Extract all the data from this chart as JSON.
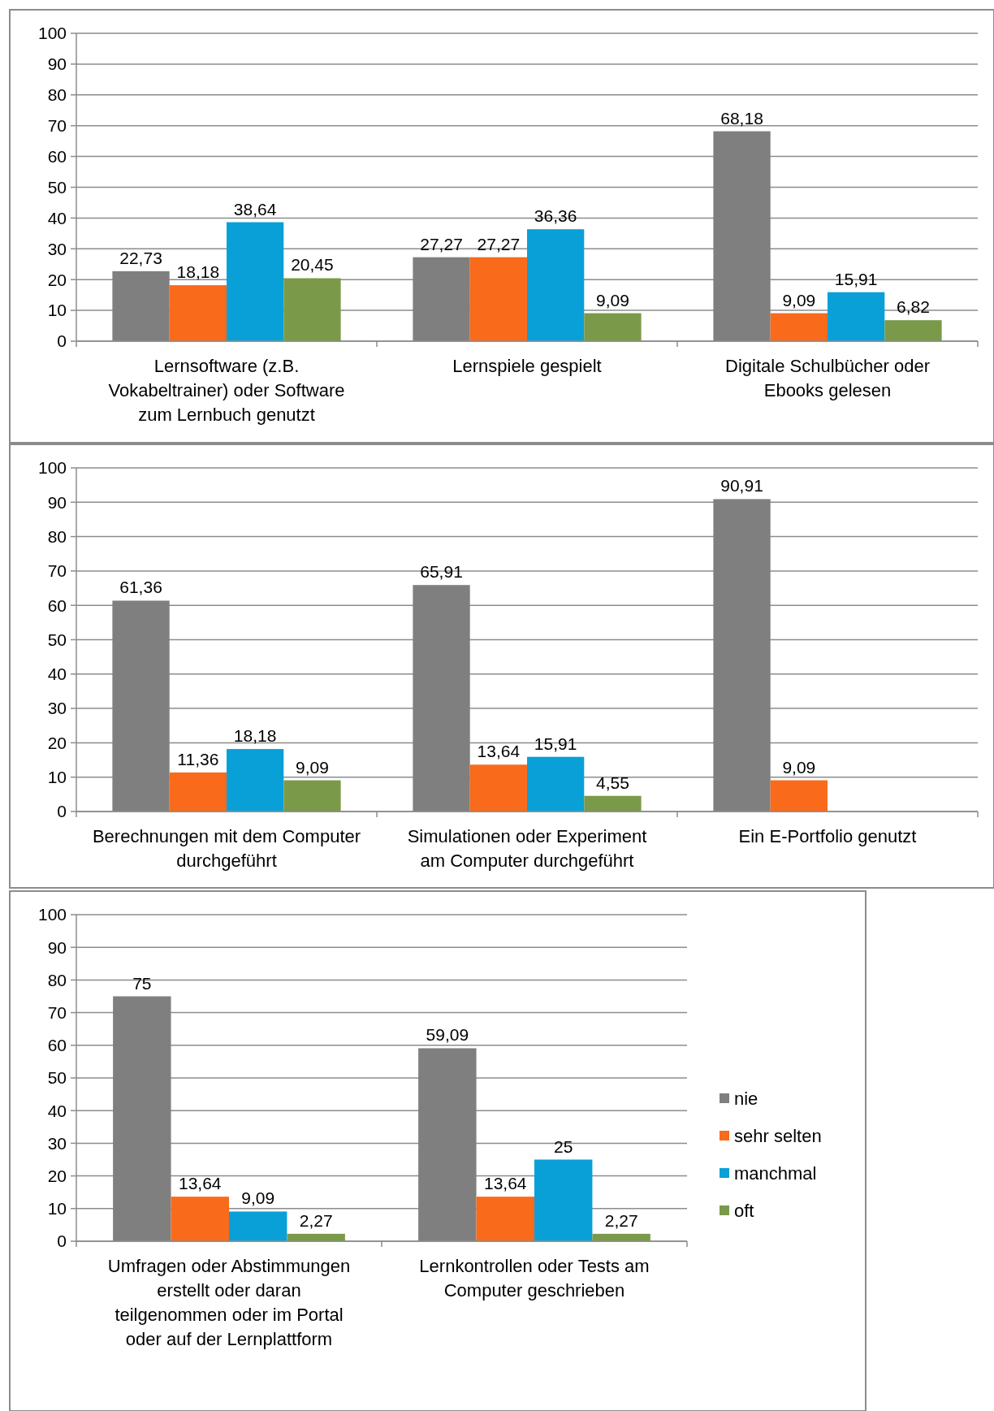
{
  "chart_data": [
    {
      "type": "bar",
      "categories": [
        "Lernsoftware (z.B. Vokabeltrainer) oder Software zum Lernbuch genutzt",
        "Lernspiele gespielt",
        "Digitale Schulbücher oder Ebooks gelesen"
      ],
      "ylim": [
        0,
        100
      ],
      "yticks": [
        0,
        10,
        20,
        30,
        40,
        50,
        60,
        70,
        80,
        90,
        100
      ],
      "grid": "y",
      "legend": false,
      "series": [
        {
          "color": "#7f7f7f",
          "values": [
            22.73,
            27.27,
            68.18
          ],
          "value_labels": [
            "22,73",
            "27,27",
            "68,18"
          ]
        },
        {
          "color": "#f96a1b",
          "values": [
            18.18,
            27.27,
            9.09
          ],
          "value_labels": [
            "18,18",
            "27,27",
            "9,09"
          ]
        },
        {
          "color": "#09a0d8",
          "values": [
            38.64,
            36.36,
            15.91
          ],
          "value_labels": [
            "38,64",
            "36,36",
            "15,91"
          ]
        },
        {
          "color": "#7a9a4a",
          "values": [
            20.45,
            9.09,
            6.82
          ],
          "value_labels": [
            "20,45",
            "9,09",
            "6,82"
          ]
        }
      ]
    },
    {
      "type": "bar",
      "categories": [
        "Berechnungen mit dem Computer durchgeführt",
        "Simulationen oder Experiment am Computer durchgeführt",
        "Ein E-Portfolio genutzt"
      ],
      "ylim": [
        0,
        100
      ],
      "yticks": [
        0,
        10,
        20,
        30,
        40,
        50,
        60,
        70,
        80,
        90,
        100
      ],
      "grid": "y",
      "legend": false,
      "series": [
        {
          "color": "#7f7f7f",
          "values": [
            61.36,
            65.91,
            90.91
          ],
          "value_labels": [
            "61,36",
            "65,91",
            "90,91"
          ]
        },
        {
          "color": "#f96a1b",
          "values": [
            11.36,
            13.64,
            9.09
          ],
          "value_labels": [
            "11,36",
            "13,64",
            "9,09"
          ]
        },
        {
          "color": "#09a0d8",
          "values": [
            18.18,
            15.91,
            null
          ],
          "value_labels": [
            "18,18",
            "15,91",
            null
          ]
        },
        {
          "color": "#7a9a4a",
          "values": [
            9.09,
            4.55,
            null
          ],
          "value_labels": [
            "9,09",
            "4,55",
            null
          ]
        }
      ]
    },
    {
      "type": "bar",
      "categories": [
        "Umfragen oder Abstimmungen erstellt oder daran teilgenommen oder im Portal oder auf der Lernplattform",
        "Lernkontrollen oder Tests am Computer geschrieben"
      ],
      "ylim": [
        0,
        100
      ],
      "yticks": [
        0,
        10,
        20,
        30,
        40,
        50,
        60,
        70,
        80,
        90,
        100
      ],
      "grid": "y",
      "legend": "right",
      "series": [
        {
          "name": "nie",
          "color": "#7f7f7f",
          "values": [
            75,
            59.09
          ],
          "value_labels": [
            "75",
            "59,09"
          ]
        },
        {
          "name": "sehr selten",
          "color": "#f96a1b",
          "values": [
            13.64,
            13.64
          ],
          "value_labels": [
            "13,64",
            "13,64"
          ]
        },
        {
          "name": "manchmal",
          "color": "#09a0d8",
          "values": [
            9.09,
            25
          ],
          "value_labels": [
            "9,09",
            "25"
          ]
        },
        {
          "name": "oft",
          "color": "#7a9a4a",
          "values": [
            2.27,
            2.27
          ],
          "value_labels": [
            "2,27",
            "2,27"
          ]
        }
      ]
    }
  ]
}
